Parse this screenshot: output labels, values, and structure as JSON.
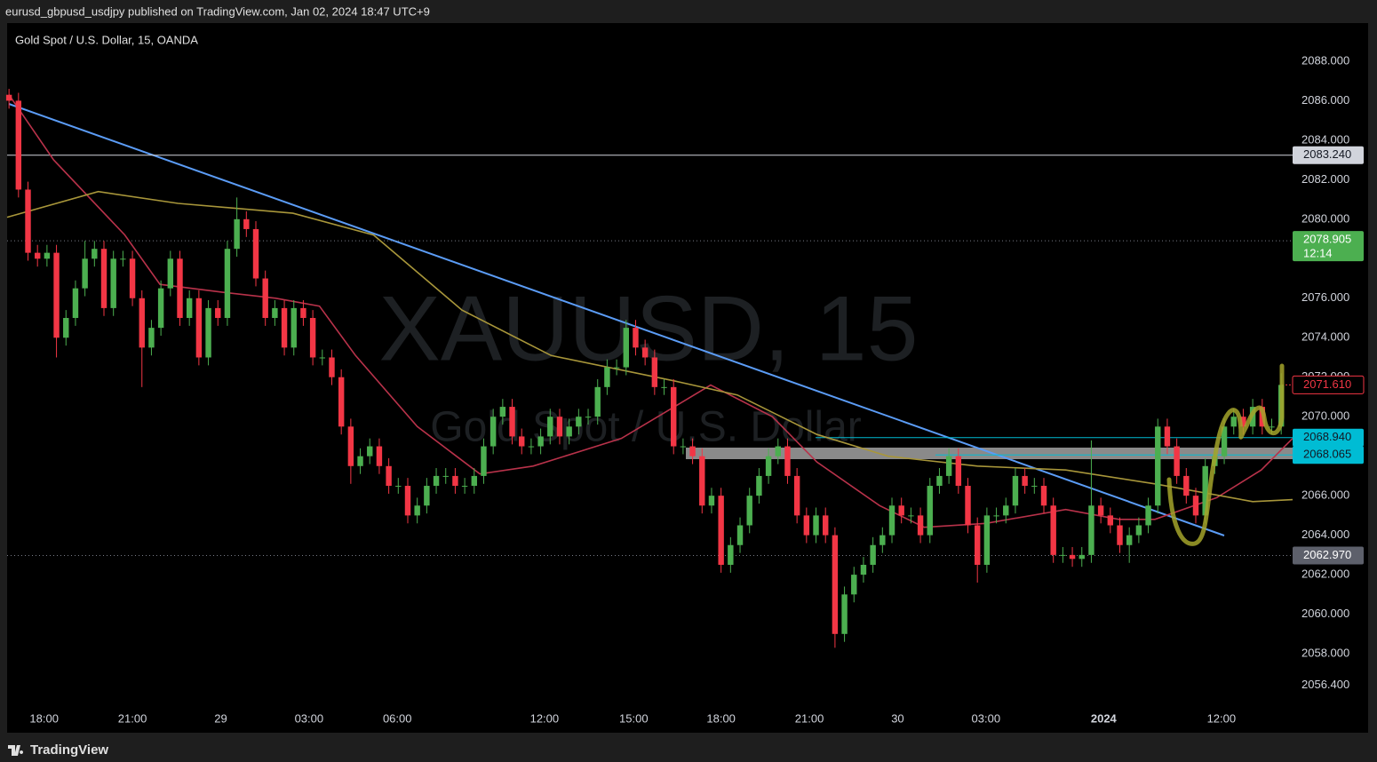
{
  "header": {
    "text": "eurusd_gbpusd_usdjpy published on TradingView.com, Jan 02, 2024 18:47 UTC+9"
  },
  "footer": {
    "brand": "TradingView"
  },
  "chart_data": {
    "type": "candlestick",
    "title": "Gold Spot / U.S. Dollar, 15, OANDA",
    "watermark": {
      "symbol": "XAUUSD, 15",
      "description": "Gold Spot / U.S. Dollar"
    },
    "up_color": "#4caf50",
    "down_color": "#f23645",
    "open": [
      2086.3,
      2086.0,
      2081.5,
      2078.3,
      2078.0,
      2078.3,
      2074.0,
      2075.0,
      2076.5,
      2078.0,
      2078.5,
      2075.5,
      2078.0,
      2078.0,
      2076.0,
      2073.5,
      2074.5,
      2076.5,
      2078.0,
      2075.0,
      2076.0,
      2073.0,
      2075.5,
      2075.0,
      2078.5,
      2080.0,
      2079.5,
      2077.0,
      2075.0,
      2075.5,
      2073.5,
      2075.5,
      2075.0,
      2073.0,
      2073.0,
      2072.0,
      2069.5,
      2067.5,
      2068.0,
      2068.5,
      2067.5,
      2066.5,
      2066.5,
      2065.0,
      2065.5,
      2066.5,
      2067.0,
      2067.0,
      2066.5,
      2066.5,
      2067.0,
      2068.5,
      2070.0,
      2070.5,
      2069.0,
      2068.5,
      2068.5,
      2069.0,
      2070.0,
      2069.0,
      2069.5,
      2070.0,
      2070.0,
      2071.5,
      2072.5,
      2072.5,
      2074.5,
      2073.5,
      2073.0,
      2071.5,
      2071.5,
      2068.5,
      2068.5,
      2068.0,
      2065.5,
      2066.0,
      2062.5,
      2063.5,
      2064.5,
      2066.0,
      2067.0,
      2068.0,
      2068.5,
      2067.0,
      2065.0,
      2064.0,
      2065.0,
      2064.0,
      2059.0,
      2061.0,
      2062.0,
      2062.5,
      2063.5,
      2064.0,
      2065.5,
      2065.0,
      2065.0,
      2064.0,
      2066.5,
      2067.0,
      2068.0,
      2066.5,
      2064.5,
      2062.5,
      2065.0,
      2065.0,
      2065.5,
      2067.0,
      2066.5,
      2066.5,
      2065.5,
      2063.0,
      2063.0,
      2062.8,
      2063.0,
      2065.5,
      2065.0,
      2064.5,
      2063.5,
      2064.0,
      2064.5,
      2065.5,
      2069.5,
      2068.5,
      2067.0,
      2066.0,
      2065.0,
      2067.5,
      2068.0,
      2069.5,
      2070.0,
      2069.5,
      2070.5,
      2069.5,
      2069.5
    ],
    "high": [
      2086.6,
      2086.4,
      2081.9,
      2078.7,
      2078.7,
      2078.7,
      2075.4,
      2076.9,
      2078.9,
      2078.9,
      2078.9,
      2078.4,
      2078.4,
      2078.4,
      2076.4,
      2074.9,
      2076.9,
      2078.4,
      2078.4,
      2076.4,
      2076.4,
      2075.9,
      2075.9,
      2078.9,
      2081.1,
      2080.4,
      2079.9,
      2077.4,
      2075.9,
      2075.9,
      2075.9,
      2075.9,
      2075.4,
      2073.4,
      2073.4,
      2072.4,
      2069.9,
      2068.4,
      2068.9,
      2068.9,
      2067.9,
      2066.9,
      2066.9,
      2065.9,
      2066.9,
      2067.4,
      2067.4,
      2067.4,
      2066.9,
      2067.4,
      2068.9,
      2070.4,
      2070.9,
      2070.9,
      2069.4,
      2068.9,
      2069.4,
      2070.4,
      2070.4,
      2069.9,
      2070.4,
      2070.4,
      2071.9,
      2072.9,
      2072.9,
      2074.9,
      2074.9,
      2073.9,
      2073.4,
      2071.9,
      2071.9,
      2068.9,
      2068.9,
      2068.4,
      2066.4,
      2066.4,
      2063.9,
      2064.9,
      2066.4,
      2067.4,
      2068.4,
      2068.9,
      2068.9,
      2067.4,
      2065.4,
      2065.4,
      2065.4,
      2064.4,
      2061.4,
      2062.4,
      2062.9,
      2063.9,
      2064.4,
      2065.9,
      2065.9,
      2065.4,
      2065.4,
      2066.9,
      2067.4,
      2068.4,
      2068.4,
      2066.9,
      2064.9,
      2065.4,
      2065.4,
      2065.9,
      2067.4,
      2067.4,
      2066.9,
      2066.9,
      2065.9,
      2063.4,
      2063.4,
      2063.4,
      2068.8,
      2065.9,
      2065.4,
      2064.9,
      2064.4,
      2064.9,
      2065.9,
      2069.9,
      2069.9,
      2068.9,
      2067.4,
      2066.4,
      2067.9,
      2068.4,
      2069.9,
      2070.4,
      2070.4,
      2070.9,
      2070.9,
      2069.9,
      2072.2
    ],
    "low": [
      2085.6,
      2081.1,
      2077.9,
      2077.6,
      2077.6,
      2073.0,
      2073.6,
      2074.6,
      2076.1,
      2077.6,
      2075.1,
      2075.1,
      2077.6,
      2075.6,
      2071.5,
      2073.1,
      2074.1,
      2076.1,
      2074.6,
      2074.6,
      2072.6,
      2072.6,
      2074.6,
      2074.6,
      2078.1,
      2079.1,
      2076.6,
      2074.6,
      2074.6,
      2073.1,
      2073.1,
      2074.6,
      2072.6,
      2072.6,
      2071.6,
      2069.1,
      2066.6,
      2067.1,
      2067.6,
      2067.1,
      2066.1,
      2066.1,
      2064.6,
      2064.6,
      2065.1,
      2066.1,
      2066.6,
      2066.1,
      2066.1,
      2066.1,
      2066.6,
      2068.1,
      2069.6,
      2068.6,
      2068.1,
      2068.1,
      2068.1,
      2068.6,
      2068.6,
      2068.6,
      2069.1,
      2069.6,
      2069.6,
      2071.1,
      2072.1,
      2072.1,
      2073.1,
      2072.6,
      2071.1,
      2071.1,
      2068.1,
      2068.1,
      2067.6,
      2065.1,
      2065.1,
      2062.1,
      2062.1,
      2063.1,
      2064.1,
      2065.6,
      2066.6,
      2067.6,
      2066.6,
      2064.6,
      2063.6,
      2063.6,
      2063.6,
      2058.3,
      2058.6,
      2060.6,
      2061.6,
      2062.1,
      2063.1,
      2063.6,
      2064.6,
      2064.6,
      2063.6,
      2063.6,
      2066.1,
      2066.6,
      2066.1,
      2064.1,
      2061.6,
      2062.1,
      2064.6,
      2064.6,
      2065.1,
      2066.1,
      2066.1,
      2065.1,
      2062.6,
      2062.6,
      2062.4,
      2062.4,
      2062.6,
      2064.6,
      2064.1,
      2063.1,
      2062.6,
      2063.6,
      2064.1,
      2065.1,
      2068.1,
      2066.6,
      2065.6,
      2064.6,
      2064.6,
      2067.1,
      2067.6,
      2069.1,
      2069.1,
      2069.1,
      2069.1,
      2069.1,
      2069.1
    ],
    "close": [
      2086.0,
      2081.5,
      2078.3,
      2078.0,
      2078.3,
      2074.0,
      2075.0,
      2076.5,
      2078.0,
      2078.5,
      2075.5,
      2078.0,
      2078.0,
      2076.0,
      2073.5,
      2074.5,
      2076.5,
      2078.0,
      2075.0,
      2076.0,
      2073.0,
      2075.5,
      2075.0,
      2078.5,
      2080.0,
      2079.5,
      2077.0,
      2075.0,
      2075.5,
      2073.5,
      2075.5,
      2075.0,
      2073.0,
      2073.0,
      2072.0,
      2069.5,
      2067.5,
      2068.0,
      2068.5,
      2067.5,
      2066.5,
      2066.5,
      2065.0,
      2065.5,
      2066.5,
      2067.0,
      2067.0,
      2066.5,
      2066.5,
      2067.0,
      2068.5,
      2070.0,
      2070.5,
      2069.0,
      2068.5,
      2068.5,
      2069.0,
      2070.0,
      2069.0,
      2069.5,
      2070.0,
      2070.0,
      2071.5,
      2072.5,
      2072.5,
      2074.5,
      2073.5,
      2073.0,
      2071.5,
      2071.5,
      2068.5,
      2068.5,
      2068.0,
      2065.5,
      2066.0,
      2062.5,
      2063.5,
      2064.5,
      2066.0,
      2067.0,
      2068.0,
      2068.5,
      2067.0,
      2065.0,
      2064.0,
      2065.0,
      2064.0,
      2059.0,
      2061.0,
      2062.0,
      2062.5,
      2063.5,
      2064.0,
      2065.5,
      2065.0,
      2065.0,
      2064.0,
      2066.5,
      2067.0,
      2068.0,
      2066.5,
      2064.5,
      2062.5,
      2065.0,
      2065.0,
      2065.5,
      2067.0,
      2066.5,
      2066.5,
      2065.5,
      2063.0,
      2063.0,
      2062.8,
      2063.0,
      2065.5,
      2065.0,
      2064.5,
      2063.5,
      2064.0,
      2064.5,
      2065.5,
      2069.5,
      2068.5,
      2067.0,
      2066.0,
      2065.0,
      2067.5,
      2068.0,
      2069.5,
      2070.0,
      2069.5,
      2070.5,
      2069.5,
      2069.5,
      2071.61
    ],
    "moving_averages": [
      {
        "color": "#b8324a",
        "x": [
          0,
          4.7,
          12.2,
          15.9,
          22.5,
          28.1,
          32.7,
          36.5,
          43.0,
          49.6,
          55.2,
          64.5,
          73.9,
          80.4,
          85.1,
          91.7,
          96.4,
          102.9,
          111.3,
          116.9,
          120.7,
          127.2,
          131.9,
          135.2
        ],
        "values": [
          2086.3,
          2083.0,
          2079.2,
          2076.7,
          2076.3,
          2076.0,
          2075.6,
          2073.1,
          2069.5,
          2067.1,
          2067.5,
          2068.9,
          2071.6,
          2070.0,
          2067.7,
          2065.5,
          2064.4,
          2064.6,
          2065.3,
          2064.8,
          2064.8,
          2065.9,
          2067.3,
          2068.9
        ]
      },
      {
        "color": "#a8963a",
        "x": [
          -0.2,
          9.4,
          17.8,
          29.9,
          38.4,
          47.7,
          57.1,
          70.2,
          76.7,
          85.1,
          92.6,
          102.0,
          111.3,
          120.7,
          131.0,
          135.2
        ],
        "values": [
          2080.1,
          2081.4,
          2080.8,
          2080.3,
          2079.2,
          2075.4,
          2073.1,
          2071.8,
          2071.1,
          2069.1,
          2068.0,
          2067.5,
          2067.3,
          2066.6,
          2065.7,
          2065.8
        ]
      }
    ],
    "price_lines": [
      {
        "value": 2083.24,
        "label": "2083.240",
        "style": "solid",
        "color": "#d1d4dc",
        "text_color": "#131722",
        "background": "#d1d4dc"
      },
      {
        "value": 2078.905,
        "label": "2078.905",
        "sublabel": "12:14",
        "style": "dotted",
        "color": "#787b86",
        "text_color": "#ffffff",
        "background": "#4caf50"
      },
      {
        "value": 2071.61,
        "label": "2071.610",
        "style": "none",
        "color": "#f23645",
        "text_color": "#f23645",
        "background": "#000000"
      },
      {
        "value": 2068.94,
        "label": "2068.940",
        "style": "solid",
        "color": "#00bcd4",
        "text_color": "#131722",
        "background": "#00bcd4"
      },
      {
        "value": 2068.065,
        "label": "2068.065",
        "style": "solid",
        "color": "#00bcd4",
        "text_color": "#131722",
        "background": "#00bcd4"
      },
      {
        "value": 2062.97,
        "label": "2062.970",
        "style": "dotted",
        "color": "#787b86",
        "text_color": "#ffffff",
        "background": "#5d606b"
      }
    ],
    "xlim": [
      -0.2,
      135.2
    ],
    "xticks": [
      {
        "value": 3.7,
        "label": "18:00"
      },
      {
        "value": 13.0,
        "label": "21:00"
      },
      {
        "value": 22.3,
        "label": "29"
      },
      {
        "value": 31.6,
        "label": "03:00"
      },
      {
        "value": 40.9,
        "label": "06:00"
      },
      {
        "value": 56.4,
        "label": "12:00"
      },
      {
        "value": 65.8,
        "label": "15:00"
      },
      {
        "value": 75.0,
        "label": "18:00"
      },
      {
        "value": 84.3,
        "label": "21:00"
      },
      {
        "value": 93.6,
        "label": "30"
      },
      {
        "value": 102.9,
        "label": "03:00"
      },
      {
        "value": 115.3,
        "label": "2024",
        "weight": "bold"
      },
      {
        "value": 127.7,
        "label": "12:00"
      }
    ],
    "ylim": [
      2054.0,
      2089.93
    ],
    "yticks": [
      {
        "value": 2088,
        "label": "2088.000"
      },
      {
        "value": 2086,
        "label": "2086.000"
      },
      {
        "value": 2084,
        "label": "2084.000"
      },
      {
        "value": 2082,
        "label": "2082.000"
      },
      {
        "value": 2080,
        "label": "2080.000"
      },
      {
        "value": 2076,
        "label": "2076.000"
      },
      {
        "value": 2074,
        "label": "2074.000"
      },
      {
        "value": 2072,
        "label": "2072.000"
      },
      {
        "value": 2070,
        "label": "2070.000"
      },
      {
        "value": 2066,
        "label": "2066.000"
      },
      {
        "value": 2064,
        "label": "2064.000"
      },
      {
        "value": 2062,
        "label": "2062.000"
      },
      {
        "value": 2060,
        "label": "2060.000"
      },
      {
        "value": 2058,
        "label": "2058.000"
      },
      {
        "value": 2056.4,
        "label": "2056.400"
      }
    ],
    "grid": false
  }
}
